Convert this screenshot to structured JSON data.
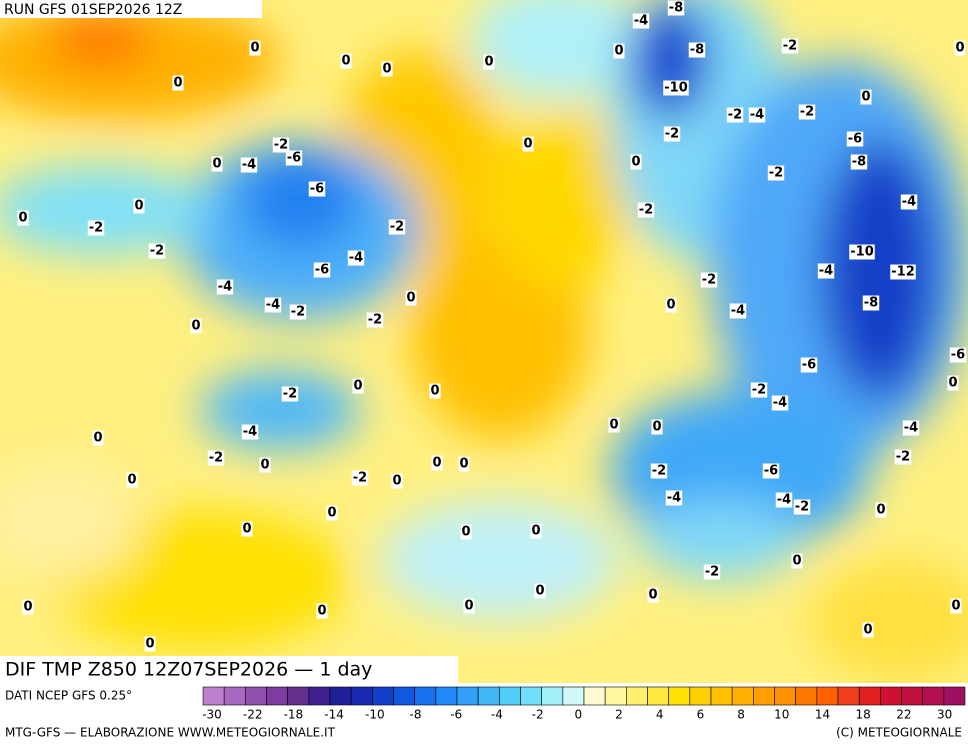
{
  "header": {
    "run": "RUN GFS 01SEP2026 12Z"
  },
  "map": {
    "contour_labels": [
      -4,
      -8,
      0,
      0,
      0,
      0,
      0,
      -8,
      -2,
      0,
      0,
      -10,
      0,
      -2,
      -4,
      -2,
      0,
      -2,
      -2,
      -6,
      -6,
      0,
      -4,
      0,
      -8,
      -2,
      -6,
      0,
      0,
      -2,
      -2,
      -2,
      -4,
      -2,
      -4,
      -10,
      -6,
      -4,
      -12,
      -2,
      -4,
      0,
      -4,
      -2,
      0,
      -4,
      -8,
      0,
      -2,
      -6,
      -6,
      0,
      0,
      -2,
      -2,
      -4,
      0,
      -4,
      0,
      0,
      0,
      -4,
      -2,
      0,
      0,
      0,
      -2,
      -6,
      -2,
      0,
      -2,
      0,
      -4,
      -4,
      -2,
      0,
      0,
      0,
      0,
      0,
      -2,
      0,
      0,
      0,
      0,
      0,
      0,
      0,
      0,
      0
    ]
  },
  "footer": {
    "product": "DIF TMP Z850 12Z07SEP2026 — 1 day",
    "source": "DATI NCEP GFS 0.25°",
    "credit": "MTG-GFS — ELABORAZIONE WWW.METEOGIORNALE.IT",
    "copyright": "(C) METEOGIORNALE"
  },
  "colorbar": {
    "colors": [
      "#c080d0",
      "#a868c0",
      "#9050b0",
      "#7c3ca0",
      "#643090",
      "#402090",
      "#20209a",
      "#1828b0",
      "#1040c8",
      "#1058e0",
      "#1870f0",
      "#2088f8",
      "#30a0f8",
      "#40b8f8",
      "#50d0f8",
      "#70e0f8",
      "#a0f0f8",
      "#d0f8f8",
      "#fffad0",
      "#fff8a0",
      "#fff070",
      "#ffe840",
      "#ffe000",
      "#ffd000",
      "#ffc000",
      "#ffb000",
      "#ffa000",
      "#ff9000",
      "#ff7800",
      "#ff6000",
      "#f04020",
      "#e02020",
      "#d01030",
      "#c01040",
      "#b01050",
      "#a01060"
    ],
    "ticks": [
      -30,
      -22,
      -18,
      -14,
      -10,
      -8,
      -6,
      -4,
      -2,
      0,
      2,
      4,
      6,
      8,
      10,
      14,
      18,
      22,
      30
    ]
  }
}
